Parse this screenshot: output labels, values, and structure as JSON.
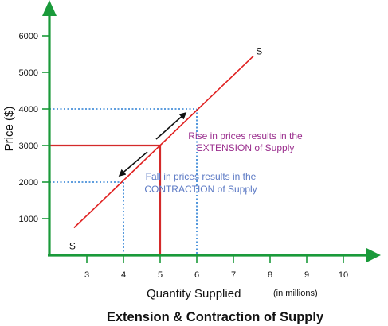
{
  "chart_data": {
    "type": "line",
    "title": "Extension & Contraction of Supply",
    "xlabel": "Quantity Supplied",
    "xlabel_unit": "(in millions)",
    "ylabel": "Price ($)",
    "x_ticks": [
      3,
      4,
      5,
      6,
      7,
      8,
      9,
      10
    ],
    "y_ticks": [
      1000,
      2000,
      3000,
      4000,
      5000,
      6000
    ],
    "xlim": [
      2,
      10.8
    ],
    "ylim": [
      0,
      6800
    ],
    "series": [
      {
        "name": "S",
        "points": [
          [
            2.65,
            750
          ],
          [
            7.55,
            5450
          ]
        ],
        "labels": [
          "S",
          "S"
        ]
      }
    ],
    "reference_points": [
      {
        "x": 5,
        "y": 3000,
        "style": "solid"
      },
      {
        "x": 6,
        "y": 4000,
        "style": "dotted"
      },
      {
        "x": 4,
        "y": 2000,
        "style": "dotted"
      }
    ],
    "annotations": [
      {
        "text_lines": [
          "Rise in prices results in the",
          "EXTENSION of Supply"
        ],
        "color": "#9B2F8E"
      },
      {
        "text_lines": [
          "Fall in prices results in the",
          "CONTRACTION of Supply"
        ],
        "color": "#5B79C4"
      }
    ],
    "grid": false,
    "colors": {
      "axes": "#1a9a3a",
      "supply": "#e02020",
      "solid_ref": "#d42a2a",
      "dotted_ref": "#2a7fd4",
      "arrows": "#111111"
    }
  }
}
